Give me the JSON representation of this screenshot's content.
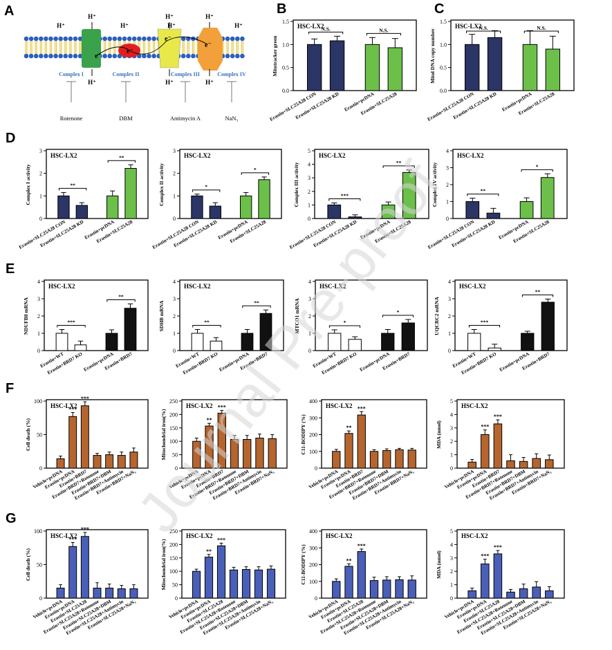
{
  "watermark": "Journal Pre-proof",
  "colors": {
    "navy": "#2b3566",
    "green": "#6cc04a",
    "brown": "#b6652f",
    "blue": "#4a5fb8",
    "black": "#111111",
    "white": "#ffffff",
    "complex1": "#3aa24a",
    "complex2": "#e02020",
    "complex3": "#e8e84a",
    "complex4": "#f2a03a",
    "membrane_head": "#2a5fc0",
    "membrane_tail": "#e8c84a",
    "complex_label": "#3a72c0"
  },
  "panelA": {
    "letter": "A",
    "top_h": "H⁺",
    "bottom_h": "H⁺",
    "electron": "e⁻",
    "complexes": [
      "Complex I",
      "Complex II",
      "Complex III",
      "Complex IV"
    ],
    "inhibitors": [
      "Rotenone",
      "DBM",
      "Antimycin A",
      "NaN₃"
    ]
  },
  "panels": [
    {
      "letter": "B",
      "title": "HSC-LX2",
      "chart_data": {
        "type": "bar",
        "ylabel": "Mitotracker green",
        "ylim": [
          0,
          1.5
        ],
        "ticks": [
          0.0,
          0.5,
          1.0,
          1.5
        ],
        "categories": [
          "Erastin+SLC25A28 CON",
          "Erastin+SLC25A28 KD",
          "Erastin+pcDNA",
          "Erastin+SLC25A28"
        ],
        "values": [
          1.0,
          1.08,
          1.0,
          0.93
        ],
        "errors": [
          0.12,
          0.1,
          0.15,
          0.2
        ],
        "fills": [
          "navy",
          "navy",
          "green",
          "green"
        ],
        "significance": [
          {
            "from": 0,
            "to": 1,
            "label": "N.S."
          },
          {
            "from": 2,
            "to": 3,
            "label": "N.S."
          }
        ]
      }
    },
    {
      "letter": "C",
      "title": "HSC-LX2",
      "chart_data": {
        "type": "bar",
        "ylabel": "Mitol DNA copy number",
        "ylim": [
          0,
          1.5
        ],
        "ticks": [
          0.0,
          0.5,
          1.0,
          1.5
        ],
        "categories": [
          "Erastin+SLC25A28 CON",
          "Erastin+SLC25A28 KD",
          "Erastin+pcDNA",
          "Erastin+SLC25A28"
        ],
        "values": [
          1.0,
          1.15,
          1.0,
          0.9
        ],
        "errors": [
          0.22,
          0.15,
          0.3,
          0.28
        ],
        "fills": [
          "navy",
          "navy",
          "green",
          "green"
        ],
        "significance": [
          {
            "from": 0,
            "to": 1,
            "label": "N.S."
          },
          {
            "from": 2,
            "to": 3,
            "label": "N.S."
          }
        ]
      }
    },
    {
      "letter": "D",
      "title": "HSC-LX2",
      "chart_data": {
        "type": "bar",
        "ylabel": "Complex I activity",
        "ylim": [
          0,
          3
        ],
        "ticks": [
          0,
          1,
          2,
          3
        ],
        "categories": [
          "Erastin+SLC25A28 CON",
          "Erastin+SLC25A28 KD",
          "Erastin+pcDNA",
          "Erastin+SLC25A28"
        ],
        "values": [
          1.0,
          0.58,
          1.0,
          2.22
        ],
        "errors": [
          0.15,
          0.12,
          0.22,
          0.16
        ],
        "fills": [
          "navy",
          "navy",
          "green",
          "green"
        ],
        "significance": [
          {
            "from": 0,
            "to": 1,
            "label": "**"
          },
          {
            "from": 2,
            "to": 3,
            "label": "**"
          }
        ]
      }
    },
    {
      "letter": "",
      "title": "HSC-LX2",
      "chart_data": {
        "type": "bar",
        "ylabel": "Complex II activity",
        "ylim": [
          0,
          3
        ],
        "ticks": [
          0,
          1,
          2,
          3
        ],
        "categories": [
          "Erastin+SLC25A28 CON",
          "Erastin+SLC25A28 KD",
          "Erastin+pcDNA",
          "Erastin+SLC25A28"
        ],
        "values": [
          1.0,
          0.55,
          1.0,
          1.72
        ],
        "errors": [
          0.08,
          0.15,
          0.15,
          0.12
        ],
        "fills": [
          "navy",
          "navy",
          "green",
          "green"
        ],
        "significance": [
          {
            "from": 0,
            "to": 1,
            "label": "*"
          },
          {
            "from": 2,
            "to": 3,
            "label": "*"
          }
        ]
      }
    },
    {
      "letter": "",
      "title": "HSC-LX2",
      "chart_data": {
        "type": "bar",
        "ylabel": "Complex III activity",
        "ylim": [
          0,
          5
        ],
        "ticks": [
          0,
          1,
          2,
          3,
          4,
          5
        ],
        "categories": [
          "Erastin+SLC25A28 CON",
          "Erastin+SLC25A28 KD",
          "Erastin+pcDNA",
          "Erastin+SLC25A28"
        ],
        "values": [
          1.0,
          0.12,
          1.0,
          3.4
        ],
        "errors": [
          0.15,
          0.15,
          0.22,
          0.18
        ],
        "fills": [
          "navy",
          "navy",
          "green",
          "green"
        ],
        "significance": [
          {
            "from": 0,
            "to": 1,
            "label": "***"
          },
          {
            "from": 2,
            "to": 3,
            "label": "**"
          }
        ]
      }
    },
    {
      "letter": "",
      "title": "HSC-LX2",
      "chart_data": {
        "type": "bar",
        "ylabel": "Complex IV activity",
        "ylim": [
          0,
          4
        ],
        "ticks": [
          0,
          1,
          2,
          3,
          4
        ],
        "categories": [
          "Erastin+SLC25A28 CON",
          "Erastin+SLC25A28 KD",
          "Erastin+pcDNA",
          "Erastin+SLC25A28"
        ],
        "values": [
          1.0,
          0.32,
          1.0,
          2.42
        ],
        "errors": [
          0.2,
          0.28,
          0.22,
          0.22
        ],
        "fills": [
          "navy",
          "navy",
          "green",
          "green"
        ],
        "significance": [
          {
            "from": 0,
            "to": 1,
            "label": "**"
          },
          {
            "from": 2,
            "to": 3,
            "label": "*"
          }
        ]
      }
    },
    {
      "letter": "E",
      "title": "HSC-LX2",
      "chart_data": {
        "type": "bar",
        "ylabel": "NDUFB8 mRNA",
        "ylim": [
          0,
          4
        ],
        "ticks": [
          0,
          1,
          2,
          3,
          4
        ],
        "categories": [
          "Erastin+WT",
          "Erastin+BRD7 KO",
          "Erastin+pcDNA",
          "Erastin+BRD7"
        ],
        "values": [
          1.0,
          0.33,
          1.0,
          2.45
        ],
        "errors": [
          0.22,
          0.22,
          0.2,
          0.25
        ],
        "fills": [
          "white",
          "white",
          "black",
          "black"
        ],
        "significance": [
          {
            "from": 0,
            "to": 1,
            "label": "***"
          },
          {
            "from": 2,
            "to": 3,
            "label": "**"
          }
        ]
      }
    },
    {
      "letter": "",
      "title": "HSC-LX2",
      "chart_data": {
        "type": "bar",
        "ylabel": "SDHB mRNA",
        "ylim": [
          0,
          4
        ],
        "ticks": [
          0,
          1,
          2,
          3,
          4
        ],
        "categories": [
          "Erastin+WT",
          "Erastin+BRD7 KO",
          "Erastin+pcDNA",
          "Erastin+BRD7"
        ],
        "values": [
          1.0,
          0.55,
          1.0,
          2.15
        ],
        "errors": [
          0.22,
          0.2,
          0.22,
          0.2
        ],
        "fills": [
          "white",
          "white",
          "black",
          "black"
        ],
        "significance": [
          {
            "from": 0,
            "to": 1,
            "label": "**"
          },
          {
            "from": 2,
            "to": 3,
            "label": "**"
          }
        ]
      }
    },
    {
      "letter": "",
      "title": "HSC-LX2",
      "chart_data": {
        "type": "bar",
        "ylabel": "MTCO1 mRNA",
        "ylim": [
          0,
          4
        ],
        "ticks": [
          0,
          1,
          2,
          3,
          4
        ],
        "categories": [
          "Erastin+WT",
          "Erastin+BRD7 KO",
          "Erastin+pcDNA",
          "Erastin+BRD7"
        ],
        "values": [
          1.0,
          0.65,
          1.0,
          1.6
        ],
        "errors": [
          0.2,
          0.15,
          0.22,
          0.2
        ],
        "fills": [
          "white",
          "white",
          "black",
          "black"
        ],
        "significance": [
          {
            "from": 0,
            "to": 1,
            "label": "*"
          },
          {
            "from": 2,
            "to": 3,
            "label": "*"
          }
        ]
      }
    },
    {
      "letter": "",
      "title": "HSC-LX2",
      "chart_data": {
        "type": "bar",
        "ylabel": "UQCRC2 mRNA",
        "ylim": [
          0,
          4
        ],
        "ticks": [
          0,
          1,
          2,
          3,
          4
        ],
        "categories": [
          "Erastin+WT",
          "Erastin+BRD7 KO",
          "Erastin+pcDNA",
          "Erastin+BRD7"
        ],
        "values": [
          1.0,
          0.15,
          1.0,
          2.8
        ],
        "errors": [
          0.22,
          0.22,
          0.12,
          0.18
        ],
        "fills": [
          "white",
          "white",
          "black",
          "black"
        ],
        "significance": [
          {
            "from": 0,
            "to": 1,
            "label": "***"
          },
          {
            "from": 2,
            "to": 3,
            "label": "**"
          }
        ]
      }
    },
    {
      "letter": "F",
      "title": "HSC-LX2",
      "chart_data": {
        "type": "bar",
        "ylabel": "Cell death (%)",
        "ylim": [
          0,
          100
        ],
        "ticks": [
          0,
          50,
          100
        ],
        "categories": [
          "Vehicle+pcDNA",
          "Erastin+pcDNA",
          "Erastin+BRD7",
          "Erastin+BRD7+Rotenone",
          "Erastin+BRD7+DBM",
          "Erastin+BRD7+Antimycin",
          "Erastin+BRD7+NaN₃"
        ],
        "values": [
          14,
          77,
          93,
          19,
          20,
          19,
          24
        ],
        "errors": [
          4,
          6,
          6,
          3,
          4,
          5,
          6
        ],
        "fills": [
          "brown",
          "brown",
          "brown",
          "brown",
          "brown",
          "brown",
          "brown"
        ],
        "stars": [
          "",
          "***",
          "***",
          "",
          "",
          "",
          ""
        ]
      }
    },
    {
      "letter": "",
      "title": "HSC-LX2",
      "chart_data": {
        "type": "bar",
        "ylabel": "Mitochondrial iron(%)",
        "ylim": [
          0,
          250
        ],
        "ticks": [
          0,
          50,
          100,
          150,
          200,
          250
        ],
        "categories": [
          "Vehicle+pcDNA",
          "Erastin+pcDNA",
          "Erastin+BRD7",
          "Erastin+BRD7+Rotenone",
          "Erastin+BRD7+DBM",
          "Erastin+BRD7+Antimycin",
          "Erastin+BRD7+NaN₃"
        ],
        "values": [
          100,
          157,
          205,
          107,
          107,
          112,
          110
        ],
        "errors": [
          12,
          10,
          10,
          15,
          15,
          15,
          15
        ],
        "fills": [
          "brown",
          "brown",
          "brown",
          "brown",
          "brown",
          "brown",
          "brown"
        ],
        "stars": [
          "",
          "**",
          "***",
          "",
          "",
          "",
          ""
        ]
      }
    },
    {
      "letter": "",
      "title": "HSC-LX2",
      "chart_data": {
        "type": "bar",
        "ylabel": "C11-BODIPY (%)",
        "ylim": [
          0,
          400
        ],
        "ticks": [
          0,
          100,
          200,
          300,
          400
        ],
        "categories": [
          "Vehicle+pcDNA",
          "Erastin+pcDNA",
          "Erastin+BRD7",
          "Erastin+BRD7+Rotenone",
          "Erastin+BRD7+DBM",
          "Erastin+BRD7+Antimycin",
          "Erastin+BRD7+NaN₃"
        ],
        "values": [
          100,
          207,
          317,
          100,
          105,
          110,
          108
        ],
        "errors": [
          12,
          15,
          20,
          10,
          10,
          8,
          10
        ],
        "fills": [
          "brown",
          "brown",
          "brown",
          "brown",
          "brown",
          "brown",
          "brown"
        ],
        "stars": [
          "",
          "**",
          "***",
          "",
          "",
          "",
          ""
        ]
      }
    },
    {
      "letter": "",
      "title": "HSC-LX2",
      "chart_data": {
        "type": "bar",
        "ylabel": "MDA (nmol)",
        "ylim": [
          0,
          5
        ],
        "ticks": [
          0,
          1,
          2,
          3,
          4,
          5
        ],
        "categories": [
          "Vehicle+pcDNA",
          "Erastin+pcDNA",
          "Erastin+BRD7",
          "Erastin+BRD7+Rotenone",
          "Erastin+BRD7+DBM",
          "Erastin+BRD7+Antimycin",
          "Erastin+BRD7+NaN₃"
        ],
        "values": [
          0.45,
          2.5,
          3.3,
          0.55,
          0.5,
          0.72,
          0.63
        ],
        "errors": [
          0.2,
          0.35,
          0.3,
          0.45,
          0.3,
          0.35,
          0.35
        ],
        "fills": [
          "brown",
          "brown",
          "brown",
          "brown",
          "brown",
          "brown",
          "brown"
        ],
        "stars": [
          "",
          "***",
          "***",
          "",
          "",
          "",
          ""
        ]
      }
    },
    {
      "letter": "G",
      "title": "HSC-LX2",
      "chart_data": {
        "type": "bar",
        "ylabel": "Cell death (%)",
        "ylim": [
          0,
          100
        ],
        "ticks": [
          0,
          50,
          100
        ],
        "categories": [
          "Vehicle+pcDNA",
          "Erastin+pcDNA",
          "Erastin+SLC25A28",
          "Erastin+SLC25A28+Rotenone",
          "Erastin+SLC25A28+DBM",
          "Erastin+SLC25A28+Antimycin",
          "Erastin+SLC25A28+NaN₃"
        ],
        "values": [
          15,
          77,
          92,
          15,
          15,
          14,
          14
        ],
        "errors": [
          5,
          6,
          6,
          8,
          6,
          5,
          6
        ],
        "fills": [
          "blue",
          "blue",
          "blue",
          "blue",
          "blue",
          "blue",
          "blue"
        ],
        "stars": [
          "",
          "***",
          "***",
          "",
          "",
          "",
          ""
        ]
      }
    },
    {
      "letter": "",
      "title": "HSC-LX2",
      "chart_data": {
        "type": "bar",
        "ylabel": "Mitochondrial iron(%)",
        "ylim": [
          0,
          250
        ],
        "ticks": [
          0,
          50,
          100,
          150,
          200,
          250
        ],
        "categories": [
          "Vehicle+pcDNA",
          "Erastin+pcDNA",
          "Erastin+SLC25A28",
          "Erastin+SLC25A28+Rotenone",
          "Erastin+SLC25A28+DBM",
          "Erastin+SLC25A28+Antimycin",
          "Erastin+SLC25A28+NaN₃"
        ],
        "values": [
          100,
          153,
          195,
          105,
          107,
          105,
          108
        ],
        "errors": [
          8,
          10,
          10,
          10,
          10,
          12,
          12
        ],
        "fills": [
          "blue",
          "blue",
          "blue",
          "blue",
          "blue",
          "blue",
          "blue"
        ],
        "stars": [
          "",
          "**",
          "***",
          "",
          "",
          "",
          ""
        ]
      }
    },
    {
      "letter": "",
      "title": "HSC-LX2",
      "chart_data": {
        "type": "bar",
        "ylabel": "C11-BODIPY (%)",
        "ylim": [
          0,
          400
        ],
        "ticks": [
          0,
          100,
          200,
          300,
          400
        ],
        "categories": [
          "Vehicle+pcDNA",
          "Erastin+pcDNA",
          "Erastin+SLC25A28",
          "Erastin+SLC25A28+Rotenone",
          "Erastin+SLC25A28+DBM",
          "Erastin+SLC25A28+Antimycin",
          "Erastin+SLC25A28+NaN₃"
        ],
        "values": [
          100,
          190,
          278,
          105,
          108,
          110,
          108
        ],
        "errors": [
          15,
          15,
          15,
          20,
          20,
          18,
          25
        ],
        "fills": [
          "blue",
          "blue",
          "blue",
          "blue",
          "blue",
          "blue",
          "blue"
        ],
        "stars": [
          "",
          "**",
          "***",
          "",
          "",
          "",
          ""
        ]
      }
    },
    {
      "letter": "",
      "title": "HSC-LX2",
      "chart_data": {
        "type": "bar",
        "ylabel": "MDA (nmol)",
        "ylim": [
          0,
          5
        ],
        "ticks": [
          0,
          1,
          2,
          3,
          4,
          5
        ],
        "categories": [
          "Vehicle+pcDNA",
          "Erastin+pcDNA",
          "Erastin+SLC25A28",
          "Erastin+SLC25A28+Rotenone",
          "Erastin+SLC25A28+DBM",
          "Erastin+SLC25A28+Antimycin",
          "Erastin+SLC25A28+NaN₃"
        ],
        "values": [
          0.55,
          2.55,
          3.3,
          0.45,
          0.7,
          0.83,
          0.55
        ],
        "errors": [
          0.2,
          0.35,
          0.25,
          0.2,
          0.35,
          0.4,
          0.3
        ],
        "fills": [
          "blue",
          "blue",
          "blue",
          "blue",
          "blue",
          "blue",
          "blue"
        ],
        "stars": [
          "",
          "***",
          "***",
          "",
          "",
          "",
          ""
        ]
      }
    }
  ]
}
